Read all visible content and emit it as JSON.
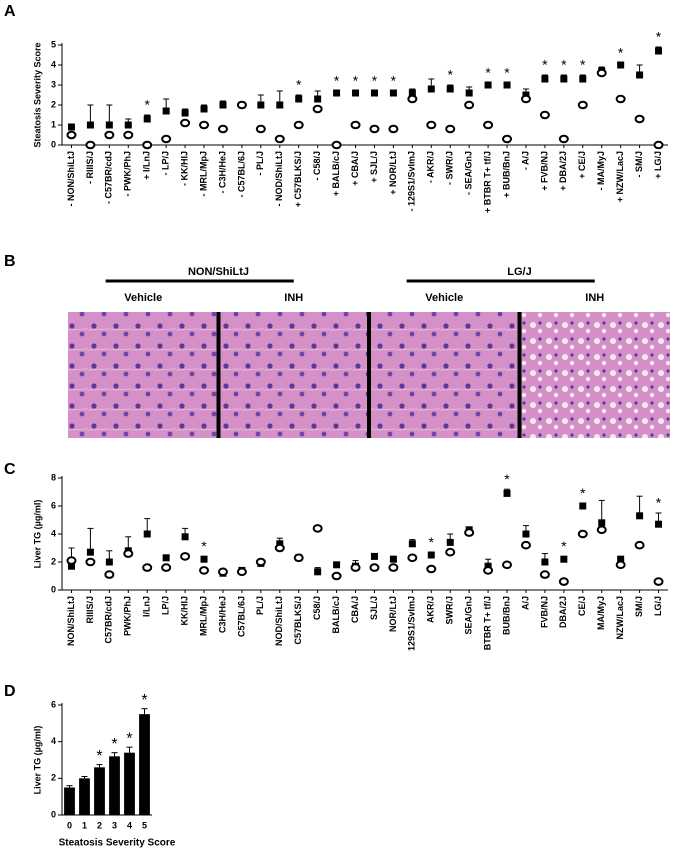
{
  "chart_data": [
    {
      "type": "dot",
      "panel": "A",
      "ylabel": "Steatosis Severity Score",
      "categories": [
        "- NON/ShiLtJ",
        "- RIIIS/J",
        "- C57BR/cdJ",
        "- PWK/PhJ",
        "+ I/LnJ",
        "- LP/J",
        "- KK/HIJ",
        "- MRL/MpJ",
        "- C3H/HeJ",
        "- C57BL/6J",
        "- PL/J",
        "- NOD/ShiLtJ",
        "+ C57BLKS/J",
        "- C58/J",
        "+ BALB/cJ",
        "+ CBA/J",
        "+ SJL/J",
        "+ NOR/LtJ",
        "- 129S1/SvImJ",
        "- AKR/J",
        "- SWR/J",
        "- SEA/GnJ",
        "+ BTBR T+ tf/J",
        "+ BUB/BnJ",
        "- A/J",
        "+ FVB/NJ",
        "+ DBA/2J",
        "+ CE/J",
        "- MA/MyJ",
        "+ NZW/LacJ",
        "- SM/J",
        "+ LG/J"
      ],
      "series": [
        {
          "marker": "square",
          "color": "#000000",
          "values": [
            0.9,
            1.0,
            1.0,
            1.0,
            1.3,
            1.7,
            1.6,
            1.8,
            2.0,
            2.0,
            2.0,
            2.0,
            2.3,
            2.3,
            2.6,
            2.6,
            2.6,
            2.6,
            2.6,
            2.8,
            2.8,
            2.6,
            3.0,
            3.0,
            2.5,
            3.3,
            3.3,
            3.3,
            3.7,
            4.0,
            3.5,
            4.7
          ],
          "errors": [
            0.1,
            1.0,
            1.0,
            0.3,
            0.2,
            0.6,
            0.2,
            0.2,
            0.2,
            0.1,
            0.5,
            0.7,
            0.2,
            0.4,
            0.1,
            0.1,
            0.1,
            0.1,
            0.2,
            0.5,
            0.2,
            0.3,
            0.1,
            0.1,
            0.3,
            0.2,
            0.2,
            0.2,
            0.2,
            0.1,
            0.5,
            0.2
          ]
        },
        {
          "marker": "circle",
          "color": "#000000",
          "values": [
            0.5,
            0,
            0.5,
            0.5,
            0,
            0.3,
            1.1,
            1.0,
            0.8,
            2.0,
            0.8,
            0.3,
            1.0,
            1.8,
            0,
            1.0,
            0.8,
            0.8,
            2.3,
            1.0,
            0.8,
            2.0,
            1.0,
            0.3,
            2.3,
            1.5,
            0.3,
            2.0,
            3.6,
            2.3,
            1.3,
            0
          ]
        }
      ],
      "significance": [
        null,
        null,
        null,
        null,
        "*",
        null,
        null,
        null,
        null,
        null,
        null,
        null,
        "*",
        null,
        "*",
        "*",
        "*",
        "*",
        null,
        null,
        "*",
        null,
        "*",
        "*",
        null,
        "*",
        "*",
        "*",
        null,
        "*",
        null,
        "*"
      ],
      "ylim": [
        0,
        5
      ],
      "yticks": [
        0,
        1,
        2,
        3,
        4,
        5
      ]
    },
    {
      "type": "dot",
      "panel": "C",
      "ylabel": "Liver TG (µg/ml)",
      "categories": [
        "NON/ShiLtJ",
        "RIIIS/J",
        "C57BR/cdJ",
        "PWK/PhJ",
        "I/LnJ",
        "LP/J",
        "KK/HIJ",
        "MRL/MpJ",
        "C3H/HeJ",
        "C57BL/6J",
        "PL/J",
        "NOD/ShiLtJ",
        "C57BLKS/J",
        "C58/J",
        "BALB/cJ",
        "CBA/J",
        "SJL/J",
        "NOR/LtJ",
        "129S1/SvImJ",
        "AKR/J",
        "SWR/J",
        "SEA/GnJ",
        "BTBR T+ tf/J",
        "BUB/BnJ",
        "A/J",
        "FVB/NJ",
        "DBA/2J",
        "CE/J",
        "MA/MyJ",
        "NZW/LacJ",
        "SM/J",
        "LG/J"
      ],
      "series": [
        {
          "marker": "square",
          "color": "#000000",
          "values": [
            1.7,
            2.7,
            2.0,
            2.8,
            4.0,
            2.3,
            3.8,
            2.2,
            1.2,
            1.4,
            1.9,
            3.3,
            2.3,
            1.3,
            1.8,
            1.7,
            2.4,
            2.2,
            3.3,
            2.5,
            3.4,
            4.3,
            1.7,
            6.9,
            4.0,
            2.0,
            2.2,
            6.0,
            4.8,
            2.2,
            5.3,
            4.7
          ],
          "errors": [
            1.3,
            1.7,
            0.8,
            1.0,
            1.1,
            0.2,
            0.6,
            0.2,
            0.2,
            0.2,
            0.3,
            0.4,
            0.2,
            0.3,
            0.2,
            0.4,
            0.2,
            0.2,
            0.3,
            0.2,
            0.6,
            0.2,
            0.5,
            0.3,
            0.6,
            0.6,
            0.2,
            0.2,
            1.6,
            0.2,
            1.4,
            0.8
          ]
        },
        {
          "marker": "circle",
          "color": "#000000",
          "values": [
            2.1,
            2.0,
            1.1,
            2.6,
            1.6,
            1.6,
            2.4,
            1.4,
            1.3,
            1.3,
            2.0,
            3.0,
            2.3,
            4.4,
            1.0,
            1.6,
            1.6,
            1.6,
            2.3,
            1.5,
            2.7,
            4.1,
            1.4,
            1.8,
            3.2,
            1.1,
            0.6,
            4.0,
            4.3,
            1.8,
            3.2,
            0.6
          ]
        }
      ],
      "significance": [
        null,
        null,
        null,
        null,
        null,
        null,
        null,
        "*",
        null,
        null,
        null,
        null,
        null,
        null,
        null,
        null,
        null,
        null,
        null,
        "*",
        null,
        null,
        null,
        "*",
        null,
        null,
        "*",
        "*",
        null,
        null,
        null,
        "*"
      ],
      "ylim": [
        0,
        8
      ],
      "yticks": [
        0,
        2,
        4,
        6,
        8
      ]
    },
    {
      "type": "bar",
      "panel": "D",
      "ylabel": "Liver TG (µg/ml)",
      "xlabel": "Steatosis Severity Score",
      "categories": [
        "0",
        "1",
        "2",
        "3",
        "4",
        "5"
      ],
      "color": "#000000",
      "values": [
        1.5,
        2.0,
        2.6,
        3.2,
        3.4,
        5.5
      ],
      "errors": [
        0.1,
        0.1,
        0.15,
        0.2,
        0.3,
        0.3
      ],
      "significance": [
        null,
        null,
        "*",
        "*",
        "*",
        "*"
      ],
      "ylim": [
        0,
        6
      ],
      "yticks": [
        0,
        2,
        4,
        6
      ]
    }
  ],
  "images_panel": {
    "panel": "B",
    "groups": [
      {
        "title": "NON/ShiLtJ",
        "images": [
          "Vehicle",
          "INH"
        ]
      },
      {
        "title": "LG/J",
        "images": [
          "Vehicle",
          "INH"
        ]
      }
    ]
  }
}
